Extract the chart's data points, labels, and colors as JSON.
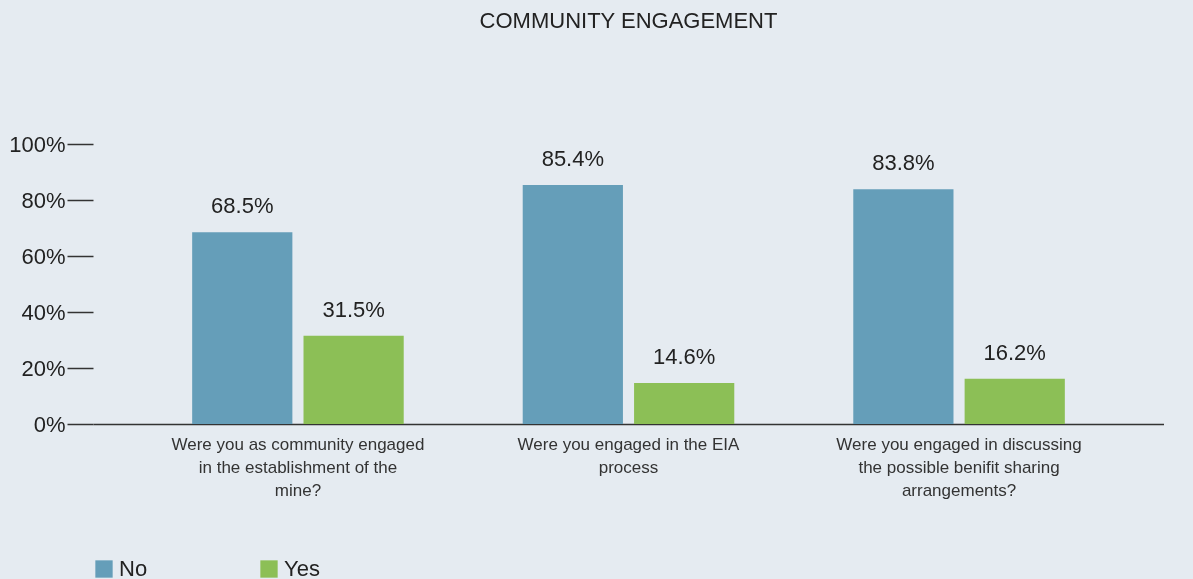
{
  "chart_data": {
    "type": "bar",
    "title": "COMMUNITY ENGAGEMENT",
    "categories": [
      "Were you as community engaged in the establishment of the mine?",
      "Were you engaged in the EIA process",
      "Were you engaged in discussing the possible benifit sharing arrangements?"
    ],
    "series": [
      {
        "name": "No",
        "color": "#659eb9",
        "values": [
          68.5,
          85.4,
          83.8
        ],
        "value_labels": [
          "68.5%",
          "85.4%",
          "83.8%"
        ]
      },
      {
        "name": "Yes",
        "color": "#8cbf56",
        "values": [
          31.5,
          14.6,
          16.2
        ],
        "value_labels": [
          "31.5%",
          "14.6%",
          "16.2%"
        ]
      }
    ],
    "ylim": [
      0,
      100
    ],
    "yticks": [
      {
        "value": 0,
        "label": "0%"
      },
      {
        "value": 20,
        "label": "20%"
      },
      {
        "value": 40,
        "label": "40%"
      },
      {
        "value": 60,
        "label": "60%"
      },
      {
        "value": 80,
        "label": "80%"
      },
      {
        "value": 100,
        "label": "100%"
      }
    ],
    "grid": false,
    "legend": "bottom"
  }
}
